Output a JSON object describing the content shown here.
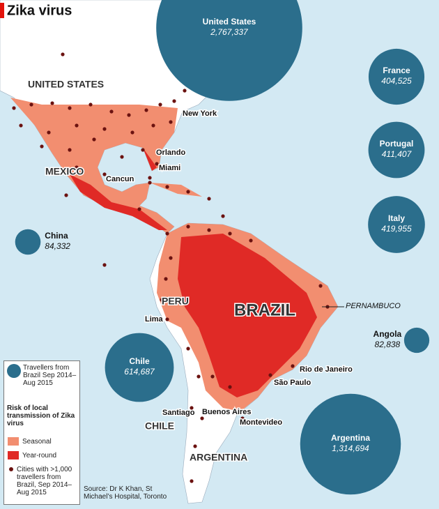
{
  "title": "Zika virus",
  "bubbles": [
    {
      "name": "United States",
      "value": 2767337,
      "value_label": "2,767,337"
    },
    {
      "name": "France",
      "value": 404525,
      "value_label": "404,525"
    },
    {
      "name": "Portugal",
      "value": 411407,
      "value_label": "411,407"
    },
    {
      "name": "Italy",
      "value": 419955,
      "value_label": "419,955"
    },
    {
      "name": "China",
      "value": 84332,
      "value_label": "84,332"
    },
    {
      "name": "Angola",
      "value": 82838,
      "value_label": "82,838"
    },
    {
      "name": "Chile",
      "value": 614687,
      "value_label": "614,687"
    },
    {
      "name": "Argentina",
      "value": 1314694,
      "value_label": "1,314,694"
    }
  ],
  "region_labels": [
    "UNITED STATES",
    "MEXICO",
    "PERU",
    "BRAZIL",
    "CHILE",
    "ARGENTINA",
    "PERNAMBUCO"
  ],
  "city_labels": [
    "New York",
    "Orlando",
    "Miami",
    "Cancun",
    "Lima",
    "Rio de Janeiro",
    "São Paulo",
    "Santiago",
    "Buenos Aires",
    "Montevideo"
  ],
  "legend": {
    "bubble": "Travellers from Brazil Sep 2014–Aug 2015",
    "risk_title": "Risk of local transmission of Zika virus",
    "seasonal": "Seasonal",
    "year_round": "Year-round",
    "cities": "Cities with >1,000 travellers from Brazil, Sep 2014–Aug 2015"
  },
  "source": "Source: Dr K Khan, St Michael’s Hospital, Toronto"
}
